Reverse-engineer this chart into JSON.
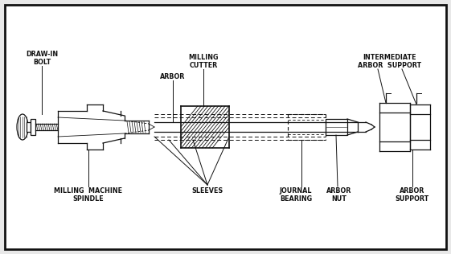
{
  "bg_color": "#e8e8e8",
  "border_color": "#111111",
  "line_color": "#111111",
  "white": "#ffffff",
  "labels": {
    "draw_in_bolt": "DRAW-IN\n  BOLT",
    "arbor": "ARBOR",
    "milling_cutter": "MILLING\nCUTTER",
    "intermediate_arbor_support": "INTERMEDIATE\nARBOR  SUPPORT",
    "milling_machine_spindle": "MILLING  MACHINE\n    SPINDLE",
    "sleeves": "SLEEVES",
    "journal_bearing": "JOURNAL\nBEARING",
    "arbor_nut": "ARBOR\n NUT",
    "arbor_support": "ARBOR\nSUPPORT"
  },
  "fig_width": 5.61,
  "fig_height": 3.16,
  "dpi": 100
}
